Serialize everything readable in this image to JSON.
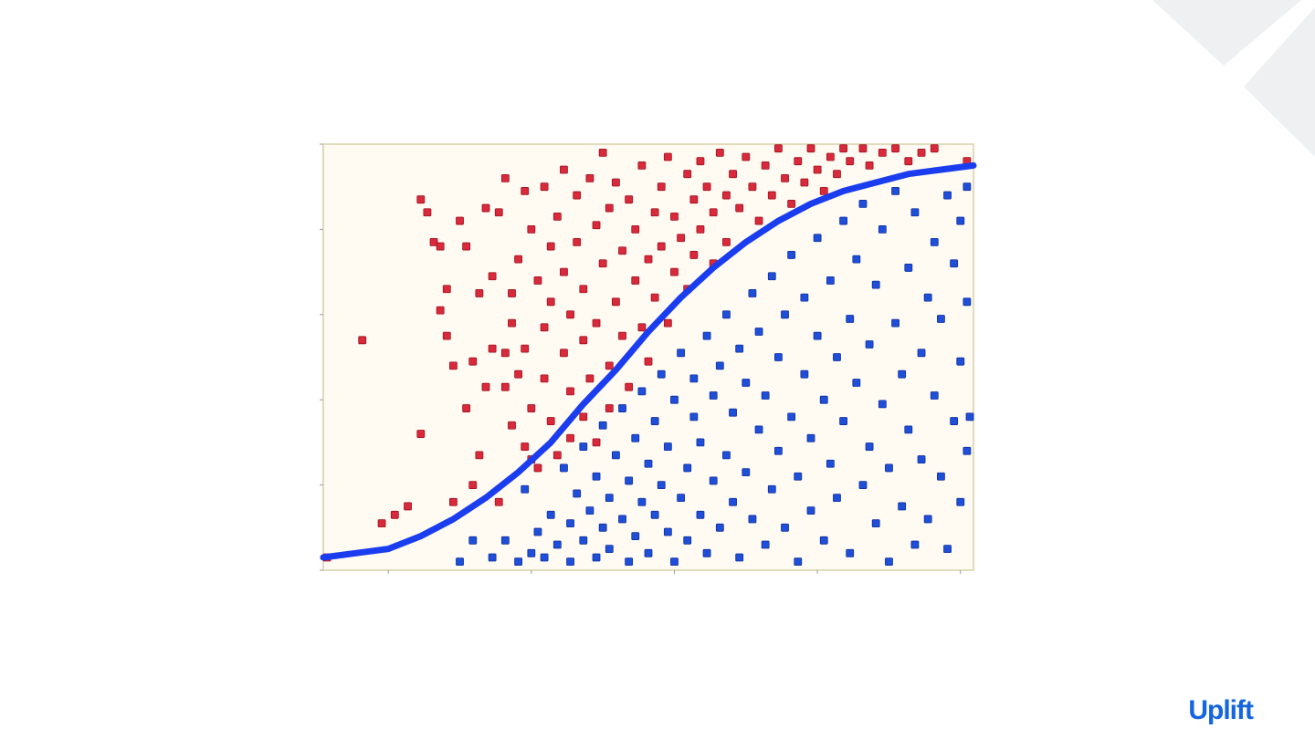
{
  "slide": {
    "logo_text": "Uplift"
  },
  "colors": {
    "plot_background": "#fffaf2",
    "plot_border": "#d8cfa8",
    "class_red": "#d82a3a",
    "class_red_edge": "#9e1020",
    "class_blue": "#1f4fd8",
    "class_blue_edge": "#0f2f9e",
    "curve": "#1a3df0",
    "logo": "#1565e0",
    "corner_decoration": "#eef0f2"
  },
  "chart_data": {
    "type": "scatter",
    "title": "",
    "xlabel": "",
    "ylabel": "",
    "xlim": [
      0,
      1
    ],
    "ylim": [
      0,
      1
    ],
    "grid": false,
    "legend": "none",
    "tick_labels_visible": false,
    "x_ticks": [
      0.1,
      0.32,
      0.54,
      0.76,
      0.98
    ],
    "y_ticks": [
      0,
      0.2,
      0.4,
      0.6,
      0.8,
      1.0
    ],
    "marker": "square",
    "series": [
      {
        "class": "red",
        "points": [
          [
            0.0,
            0.03
          ],
          [
            0.06,
            0.54
          ],
          [
            0.09,
            0.11
          ],
          [
            0.11,
            0.13
          ],
          [
            0.13,
            0.15
          ],
          [
            0.15,
            0.32
          ],
          [
            0.15,
            0.87
          ],
          [
            0.16,
            0.84
          ],
          [
            0.17,
            0.77
          ],
          [
            0.18,
            0.76
          ],
          [
            0.18,
            0.61
          ],
          [
            0.19,
            0.55
          ],
          [
            0.19,
            0.66
          ],
          [
            0.2,
            0.48
          ],
          [
            0.2,
            0.16
          ],
          [
            0.21,
            0.82
          ],
          [
            0.22,
            0.38
          ],
          [
            0.22,
            0.76
          ],
          [
            0.23,
            0.49
          ],
          [
            0.23,
            0.2
          ],
          [
            0.24,
            0.65
          ],
          [
            0.24,
            0.27
          ],
          [
            0.25,
            0.85
          ],
          [
            0.25,
            0.43
          ],
          [
            0.26,
            0.52
          ],
          [
            0.26,
            0.69
          ],
          [
            0.27,
            0.16
          ],
          [
            0.27,
            0.84
          ],
          [
            0.28,
            0.43
          ],
          [
            0.28,
            0.51
          ],
          [
            0.28,
            0.92
          ],
          [
            0.29,
            0.34
          ],
          [
            0.29,
            0.58
          ],
          [
            0.29,
            0.65
          ],
          [
            0.3,
            0.73
          ],
          [
            0.3,
            0.46
          ],
          [
            0.31,
            0.89
          ],
          [
            0.31,
            0.29
          ],
          [
            0.31,
            0.52
          ],
          [
            0.32,
            0.38
          ],
          [
            0.32,
            0.26
          ],
          [
            0.32,
            0.8
          ],
          [
            0.33,
            0.68
          ],
          [
            0.33,
            0.24
          ],
          [
            0.34,
            0.9
          ],
          [
            0.34,
            0.45
          ],
          [
            0.34,
            0.57
          ],
          [
            0.35,
            0.35
          ],
          [
            0.35,
            0.76
          ],
          [
            0.35,
            0.63
          ],
          [
            0.36,
            0.27
          ],
          [
            0.36,
            0.83
          ],
          [
            0.37,
            0.51
          ],
          [
            0.37,
            0.7
          ],
          [
            0.37,
            0.94
          ],
          [
            0.38,
            0.42
          ],
          [
            0.38,
            0.6
          ],
          [
            0.38,
            0.31
          ],
          [
            0.39,
            0.88
          ],
          [
            0.39,
            0.77
          ],
          [
            0.4,
            0.36
          ],
          [
            0.4,
            0.54
          ],
          [
            0.4,
            0.66
          ],
          [
            0.41,
            0.92
          ],
          [
            0.41,
            0.45
          ],
          [
            0.42,
            0.81
          ],
          [
            0.42,
            0.3
          ],
          [
            0.42,
            0.58
          ],
          [
            0.43,
            0.72
          ],
          [
            0.43,
            0.98
          ],
          [
            0.44,
            0.48
          ],
          [
            0.44,
            0.85
          ],
          [
            0.44,
            0.38
          ],
          [
            0.45,
            0.63
          ],
          [
            0.45,
            0.91
          ],
          [
            0.46,
            0.75
          ],
          [
            0.46,
            0.55
          ],
          [
            0.47,
            0.43
          ],
          [
            0.47,
            0.87
          ],
          [
            0.48,
            0.68
          ],
          [
            0.48,
            0.8
          ],
          [
            0.49,
            0.57
          ],
          [
            0.49,
            0.95
          ],
          [
            0.5,
            0.73
          ],
          [
            0.5,
            0.49
          ],
          [
            0.51,
            0.84
          ],
          [
            0.51,
            0.64
          ],
          [
            0.52,
            0.9
          ],
          [
            0.52,
            0.76
          ],
          [
            0.53,
            0.58
          ],
          [
            0.53,
            0.97
          ],
          [
            0.54,
            0.7
          ],
          [
            0.54,
            0.83
          ],
          [
            0.55,
            0.78
          ],
          [
            0.56,
            0.93
          ],
          [
            0.56,
            0.66
          ],
          [
            0.57,
            0.87
          ],
          [
            0.57,
            0.74
          ],
          [
            0.58,
            0.96
          ],
          [
            0.58,
            0.8
          ],
          [
            0.59,
            0.9
          ],
          [
            0.6,
            0.84
          ],
          [
            0.6,
            0.72
          ],
          [
            0.61,
            0.98
          ],
          [
            0.62,
            0.88
          ],
          [
            0.62,
            0.77
          ],
          [
            0.63,
            0.93
          ],
          [
            0.64,
            0.85
          ],
          [
            0.65,
            0.97
          ],
          [
            0.66,
            0.9
          ],
          [
            0.67,
            0.82
          ],
          [
            0.68,
            0.95
          ],
          [
            0.69,
            0.88
          ],
          [
            0.7,
            0.99
          ],
          [
            0.71,
            0.92
          ],
          [
            0.72,
            0.86
          ],
          [
            0.73,
            0.96
          ],
          [
            0.74,
            0.91
          ],
          [
            0.75,
            0.99
          ],
          [
            0.76,
            0.94
          ],
          [
            0.77,
            0.89
          ],
          [
            0.78,
            0.97
          ],
          [
            0.79,
            0.93
          ],
          [
            0.8,
            0.99
          ],
          [
            0.81,
            0.96
          ],
          [
            0.83,
            0.99
          ],
          [
            0.84,
            0.95
          ],
          [
            0.86,
            0.98
          ],
          [
            0.88,
            0.99
          ],
          [
            0.9,
            0.96
          ],
          [
            0.92,
            0.98
          ],
          [
            0.94,
            0.99
          ],
          [
            0.99,
            0.96
          ]
        ]
      },
      {
        "class": "blue",
        "points": [
          [
            0.21,
            0.02
          ],
          [
            0.23,
            0.07
          ],
          [
            0.26,
            0.03
          ],
          [
            0.28,
            0.07
          ],
          [
            0.3,
            0.02
          ],
          [
            0.31,
            0.19
          ],
          [
            0.32,
            0.04
          ],
          [
            0.33,
            0.09
          ],
          [
            0.34,
            0.03
          ],
          [
            0.35,
            0.13
          ],
          [
            0.36,
            0.06
          ],
          [
            0.37,
            0.24
          ],
          [
            0.38,
            0.02
          ],
          [
            0.38,
            0.11
          ],
          [
            0.39,
            0.18
          ],
          [
            0.4,
            0.07
          ],
          [
            0.4,
            0.29
          ],
          [
            0.41,
            0.14
          ],
          [
            0.42,
            0.03
          ],
          [
            0.42,
            0.22
          ],
          [
            0.43,
            0.1
          ],
          [
            0.43,
            0.34
          ],
          [
            0.44,
            0.17
          ],
          [
            0.44,
            0.05
          ],
          [
            0.45,
            0.27
          ],
          [
            0.46,
            0.12
          ],
          [
            0.46,
            0.38
          ],
          [
            0.47,
            0.02
          ],
          [
            0.47,
            0.21
          ],
          [
            0.48,
            0.31
          ],
          [
            0.48,
            0.08
          ],
          [
            0.49,
            0.42
          ],
          [
            0.49,
            0.16
          ],
          [
            0.5,
            0.25
          ],
          [
            0.5,
            0.04
          ],
          [
            0.51,
            0.35
          ],
          [
            0.51,
            0.13
          ],
          [
            0.52,
            0.46
          ],
          [
            0.52,
            0.2
          ],
          [
            0.53,
            0.09
          ],
          [
            0.53,
            0.29
          ],
          [
            0.54,
            0.4
          ],
          [
            0.54,
            0.02
          ],
          [
            0.55,
            0.17
          ],
          [
            0.55,
            0.51
          ],
          [
            0.56,
            0.24
          ],
          [
            0.56,
            0.07
          ],
          [
            0.57,
            0.36
          ],
          [
            0.57,
            0.45
          ],
          [
            0.58,
            0.13
          ],
          [
            0.58,
            0.3
          ],
          [
            0.59,
            0.55
          ],
          [
            0.59,
            0.04
          ],
          [
            0.6,
            0.21
          ],
          [
            0.6,
            0.41
          ],
          [
            0.61,
            0.1
          ],
          [
            0.61,
            0.48
          ],
          [
            0.62,
            0.27
          ],
          [
            0.62,
            0.6
          ],
          [
            0.63,
            0.16
          ],
          [
            0.63,
            0.37
          ],
          [
            0.64,
            0.03
          ],
          [
            0.64,
            0.52
          ],
          [
            0.65,
            0.23
          ],
          [
            0.65,
            0.44
          ],
          [
            0.66,
            0.65
          ],
          [
            0.66,
            0.12
          ],
          [
            0.67,
            0.33
          ],
          [
            0.67,
            0.56
          ],
          [
            0.68,
            0.06
          ],
          [
            0.68,
            0.41
          ],
          [
            0.69,
            0.19
          ],
          [
            0.69,
            0.69
          ],
          [
            0.7,
            0.28
          ],
          [
            0.7,
            0.5
          ],
          [
            0.71,
            0.1
          ],
          [
            0.71,
            0.6
          ],
          [
            0.72,
            0.36
          ],
          [
            0.72,
            0.74
          ],
          [
            0.73,
            0.02
          ],
          [
            0.73,
            0.22
          ],
          [
            0.74,
            0.46
          ],
          [
            0.74,
            0.64
          ],
          [
            0.75,
            0.14
          ],
          [
            0.75,
            0.31
          ],
          [
            0.76,
            0.55
          ],
          [
            0.76,
            0.78
          ],
          [
            0.77,
            0.07
          ],
          [
            0.77,
            0.4
          ],
          [
            0.78,
            0.25
          ],
          [
            0.78,
            0.68
          ],
          [
            0.79,
            0.5
          ],
          [
            0.79,
            0.17
          ],
          [
            0.8,
            0.82
          ],
          [
            0.8,
            0.35
          ],
          [
            0.81,
            0.59
          ],
          [
            0.81,
            0.04
          ],
          [
            0.82,
            0.44
          ],
          [
            0.82,
            0.73
          ],
          [
            0.83,
            0.2
          ],
          [
            0.83,
            0.86
          ],
          [
            0.84,
            0.29
          ],
          [
            0.84,
            0.53
          ],
          [
            0.85,
            0.11
          ],
          [
            0.85,
            0.67
          ],
          [
            0.86,
            0.39
          ],
          [
            0.86,
            0.8
          ],
          [
            0.87,
            0.02
          ],
          [
            0.87,
            0.24
          ],
          [
            0.88,
            0.58
          ],
          [
            0.88,
            0.89
          ],
          [
            0.89,
            0.15
          ],
          [
            0.89,
            0.46
          ],
          [
            0.9,
            0.71
          ],
          [
            0.9,
            0.33
          ],
          [
            0.91,
            0.06
          ],
          [
            0.91,
            0.84
          ],
          [
            0.92,
            0.51
          ],
          [
            0.92,
            0.26
          ],
          [
            0.93,
            0.64
          ],
          [
            0.93,
            0.12
          ],
          [
            0.94,
            0.77
          ],
          [
            0.94,
            0.41
          ],
          [
            0.95,
            0.22
          ],
          [
            0.95,
            0.59
          ],
          [
            0.96,
            0.88
          ],
          [
            0.96,
            0.05
          ],
          [
            0.97,
            0.35
          ],
          [
            0.97,
            0.72
          ],
          [
            0.98,
            0.16
          ],
          [
            0.98,
            0.49
          ],
          [
            0.98,
            0.82
          ],
          [
            0.99,
            0.28
          ],
          [
            0.99,
            0.63
          ],
          [
            0.99,
            0.9
          ],
          [
            1.0,
            0.36
          ]
        ]
      }
    ],
    "curve": {
      "type": "logistic",
      "x": [
        0.0,
        0.05,
        0.1,
        0.15,
        0.2,
        0.25,
        0.3,
        0.35,
        0.4,
        0.45,
        0.5,
        0.55,
        0.6,
        0.65,
        0.7,
        0.75,
        0.8,
        0.85,
        0.9,
        0.95,
        1.0
      ],
      "y": [
        0.03,
        0.04,
        0.05,
        0.08,
        0.12,
        0.17,
        0.23,
        0.3,
        0.39,
        0.47,
        0.56,
        0.64,
        0.71,
        0.77,
        0.82,
        0.86,
        0.89,
        0.91,
        0.93,
        0.94,
        0.95
      ]
    }
  }
}
